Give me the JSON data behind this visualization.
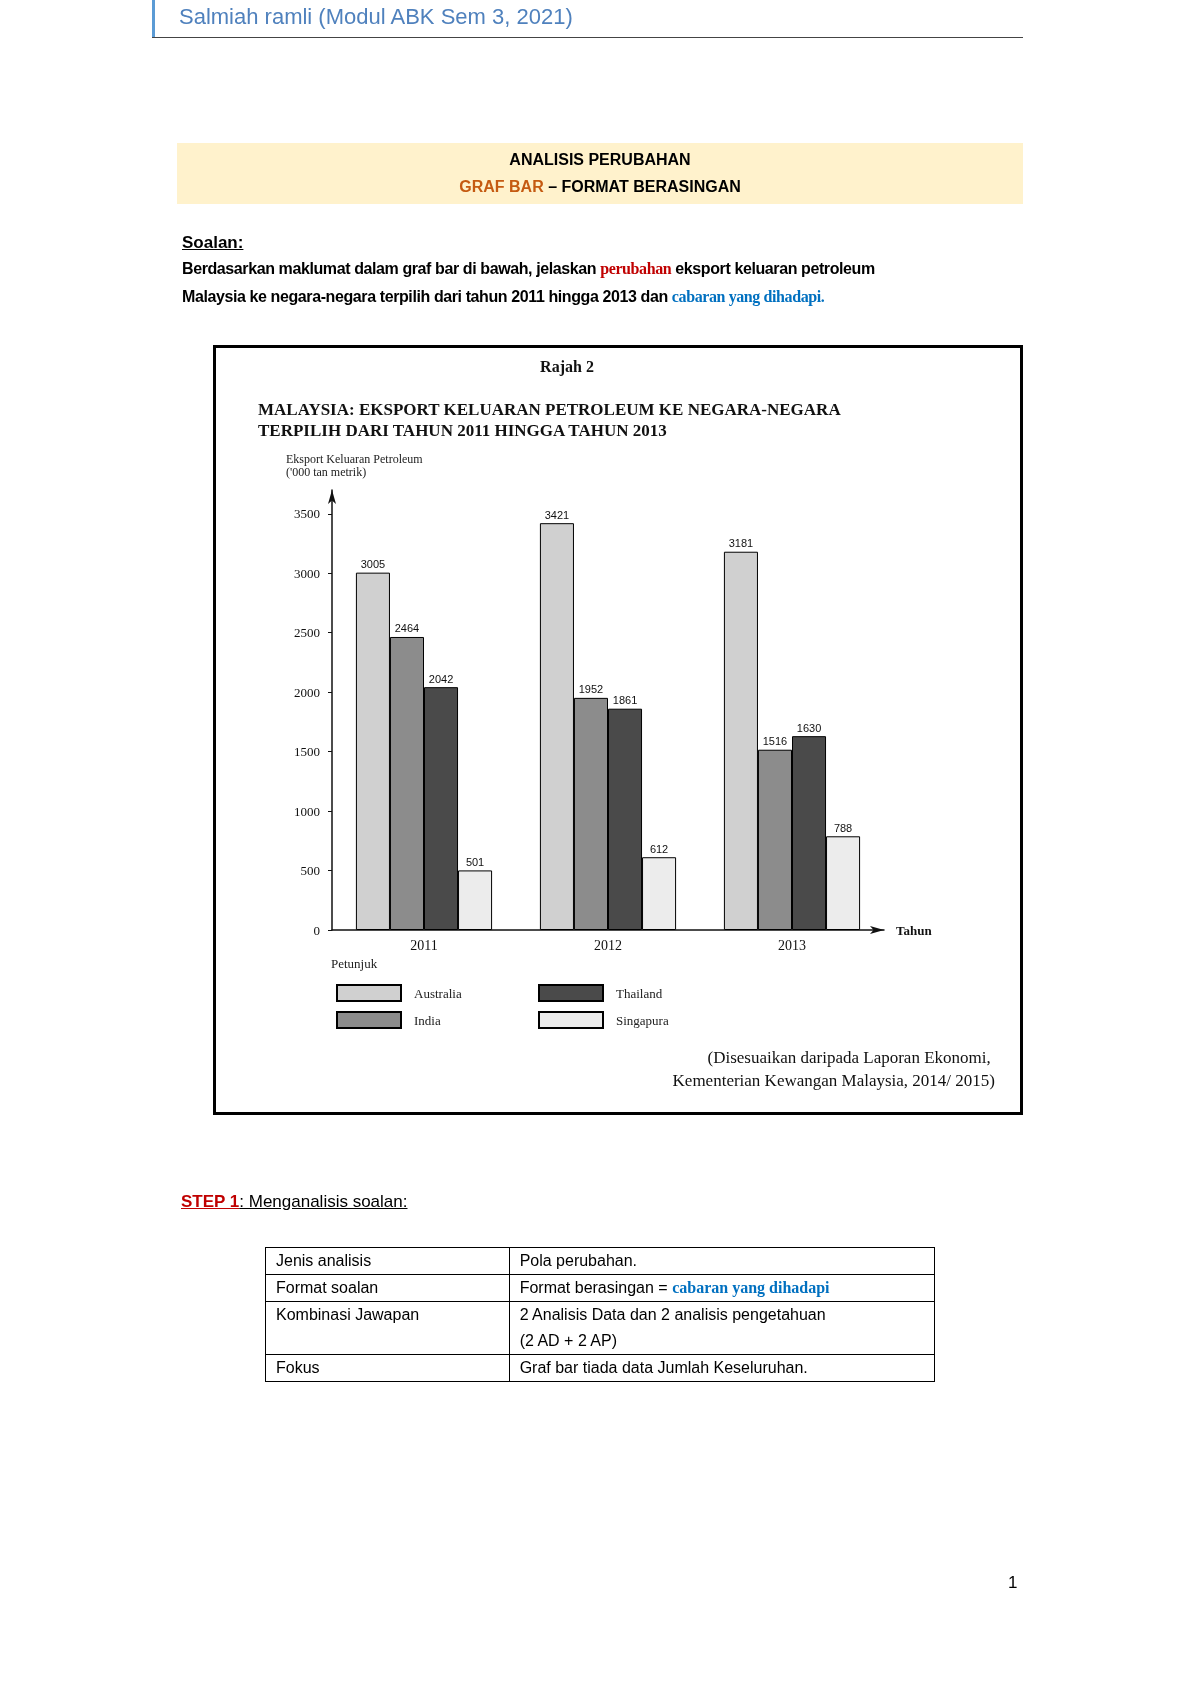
{
  "chart_data": {
    "type": "bar",
    "title": "MALAYSIA: EKSPORT KELUARAN PETROLEUM KE NEGARA-NEGARA TERPILIH DARI TAHUN 2011 HINGGA TAHUN 2013",
    "xlabel": "Tahun",
    "ylabel": "Eksport Keluaran Petroleum ('000 tan metrik)",
    "legend_title": "Petunjuk",
    "categories": [
      "2011",
      "2012",
      "2013"
    ],
    "series": [
      {
        "name": "Australia",
        "color": "#d0d0d0",
        "values": [
          3005,
          3421,
          3181
        ]
      },
      {
        "name": "India",
        "color": "#8c8c8c",
        "values": [
          2464,
          1952,
          1516
        ]
      },
      {
        "name": "Thailand",
        "color": "#4a4a4a",
        "values": [
          2042,
          1861,
          1630
        ]
      },
      {
        "name": "Singapura",
        "color": "#ececec",
        "values": [
          501,
          612,
          788
        ]
      }
    ],
    "ylim": [
      0,
      3700
    ],
    "yticks": [
      0,
      500,
      1000,
      1500,
      2000,
      2500,
      3000,
      3500
    ],
    "legend": "bottom",
    "data_labels": true,
    "annotations": [
      "Salmiah ramli (Modul ABK Sem 3, 2021)",
      "ANALISIS PERUBAHAN",
      "GRAF BAR",
      "– FORMAT BERASINGAN",
      "Soalan:",
      "Berdasarkan maklumat dalam graf bar di bawah, jelaskan",
      "perubahan",
      "eksport keluaran petroleum",
      "Malaysia ke negara-negara terpilih dari tahun 2011 hingga 2013 dan",
      "cabaran yang dihadapi.",
      "Rajah 2",
      "(Disesuaikan daripada Laporan Ekonomi, Kementerian Kewangan Malaysia, 2014/ 2015)",
      "STEP 1",
      ": Menganalisis soalan:",
      "Jenis analisis",
      "Pola perubahan.",
      "Format soalan",
      "Format berasingan =",
      "cabaran yang dihadapi",
      "Kombinasi Jawapan",
      "2 Analisis Data dan 2 analisis pengetahuan",
      "(2 AD + 2 AP)",
      "Fokus",
      "Graf bar tiada data Jumlah Keseluruhan.",
      "1"
    ]
  }
}
